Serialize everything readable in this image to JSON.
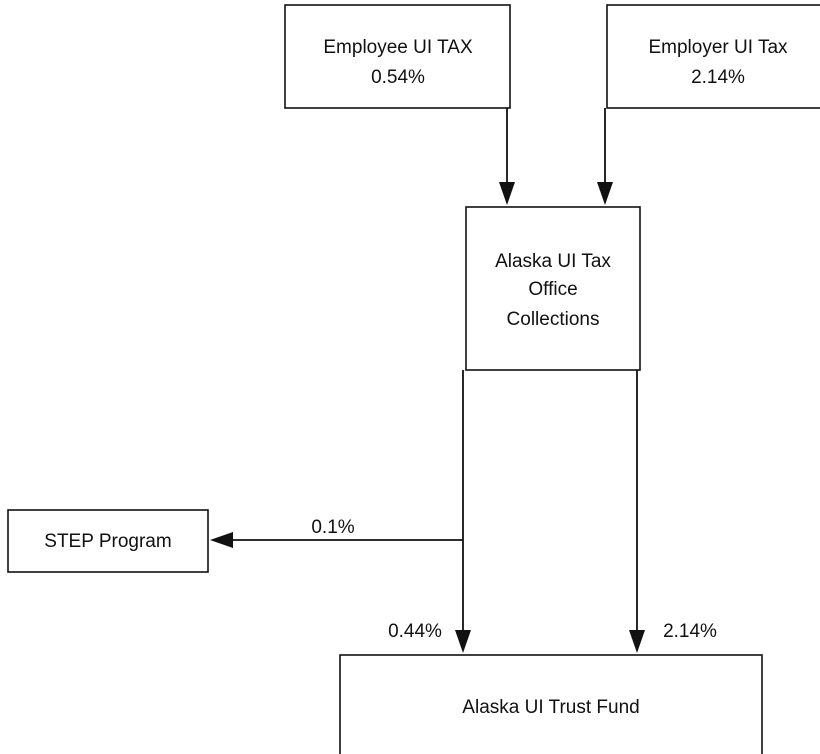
{
  "nodes": [
    {
      "lines": [
        "Employee UI TAX",
        "0.54%"
      ]
    },
    {
      "lines": [
        "Employer UI Tax",
        "2.14%"
      ]
    },
    {
      "lines": [
        "Alaska UI Tax",
        "Office",
        "Collections"
      ]
    },
    {
      "lines": [
        "STEP Program"
      ]
    },
    {
      "lines": [
        "Alaska UI Trust Fund"
      ]
    }
  ],
  "edges": [
    {
      "label": "0.1%"
    },
    {
      "label": "0.44%"
    },
    {
      "label": "2.14%"
    }
  ]
}
